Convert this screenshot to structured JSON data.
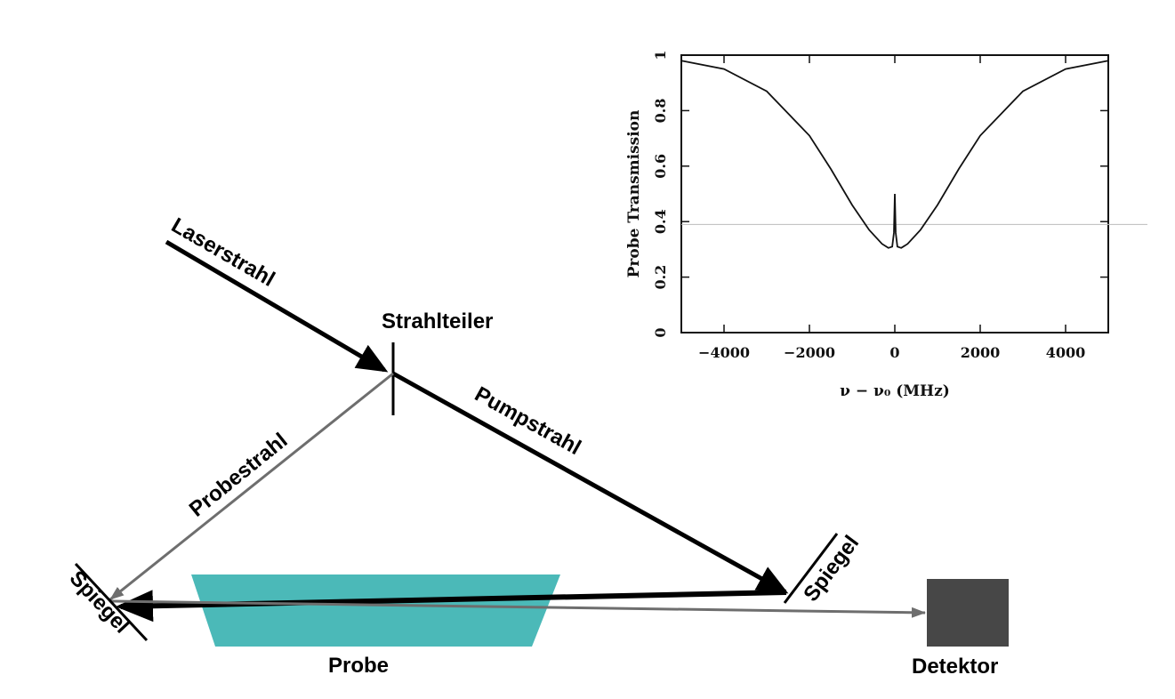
{
  "diagram": {
    "laser_label": "Laserstrahl",
    "splitter_label": "Strahlteiler",
    "pump_label": "Pumpstrahl",
    "probe_beam_label": "Probestrahl",
    "mirror_left_label": "Spiegel",
    "mirror_right_label": "Spiegel",
    "sample_label": "Probe",
    "detector_label": "Detektor",
    "colors": {
      "beam_strong": "#000000",
      "beam_probe": "#6e6e6e",
      "sample": "#4bb9b8",
      "detector": "#474747"
    }
  },
  "chart_data": {
    "type": "line",
    "title": "",
    "xlabel": "ν − ν₀ (MHz)",
    "ylabel": "Probe Transmission",
    "xlim": [
      -5000,
      5000
    ],
    "ylim": [
      0,
      1
    ],
    "x_ticks": [
      "-4000",
      "-2000",
      "0",
      "2000",
      "4000"
    ],
    "y_ticks": [
      "0",
      "0.2",
      "0.4",
      "0.6",
      "0.8",
      "1"
    ],
    "reference_line_y": 0.39,
    "series": [
      {
        "name": "",
        "x": [
          -5000,
          -4000,
          -3000,
          -2000,
          -1500,
          -1000,
          -600,
          -300,
          -150,
          -60,
          -20,
          0,
          20,
          60,
          150,
          300,
          600,
          1000,
          1500,
          2000,
          3000,
          4000,
          5000
        ],
        "y": [
          0.98,
          0.95,
          0.87,
          0.71,
          0.59,
          0.46,
          0.37,
          0.32,
          0.305,
          0.31,
          0.36,
          0.5,
          0.36,
          0.31,
          0.305,
          0.32,
          0.37,
          0.46,
          0.59,
          0.71,
          0.87,
          0.95,
          0.98
        ]
      }
    ]
  }
}
